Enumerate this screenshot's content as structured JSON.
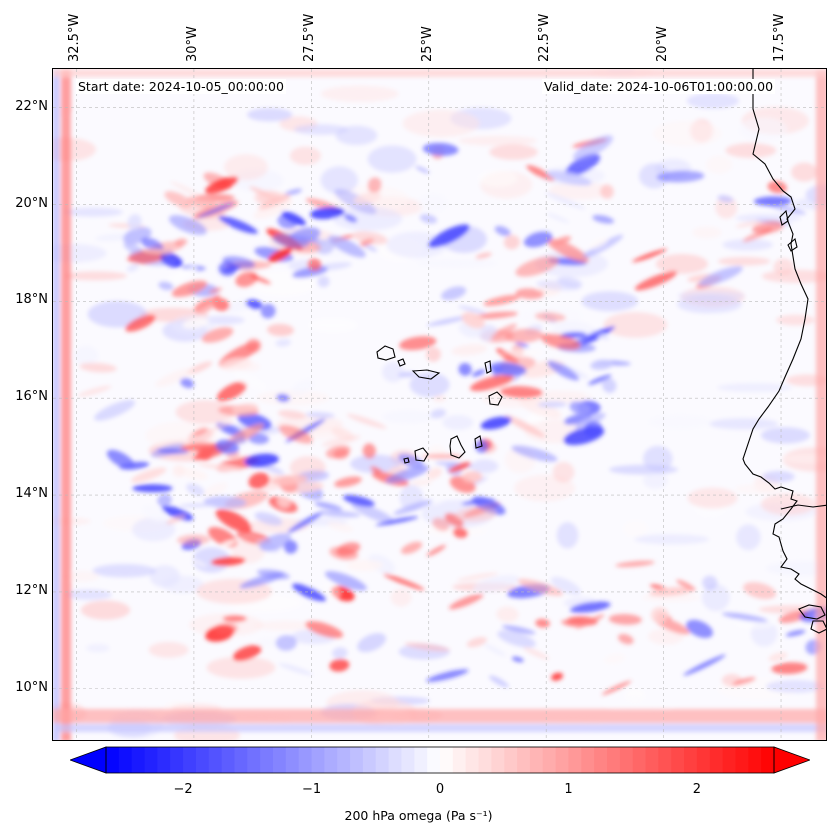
{
  "header": {
    "start_date": "Start date: 2024-10-05_00:00:00",
    "valid_date": "Valid_date: 2024-10-06T01:00:00.00"
  },
  "map": {
    "projection": "lat-lon",
    "lon_range_deg": [
      -33,
      -16.5
    ],
    "lat_range_deg": [
      8.9,
      22.8
    ],
    "lon_ticks": [
      {
        "value": -32.5,
        "label": "32.5°W"
      },
      {
        "value": -30.0,
        "label": "30°W"
      },
      {
        "value": -27.5,
        "label": "27.5°W"
      },
      {
        "value": -25.0,
        "label": "25°W"
      },
      {
        "value": -22.5,
        "label": "22.5°W"
      },
      {
        "value": -20.0,
        "label": "20°W"
      },
      {
        "value": -17.5,
        "label": "17.5°W"
      }
    ],
    "lat_ticks": [
      {
        "value": 22,
        "label": "22°N"
      },
      {
        "value": 20,
        "label": "20°N"
      },
      {
        "value": 18,
        "label": "18°N"
      },
      {
        "value": 16,
        "label": "16°N"
      },
      {
        "value": 14,
        "label": "14°N"
      },
      {
        "value": 12,
        "label": "12°N"
      },
      {
        "value": 10,
        "label": "10°N"
      }
    ],
    "gridlines": true,
    "features": [
      "Cape Verde islands",
      "West African coastline (Senegal, Gambia, Guinea-Bissau)"
    ]
  },
  "colorbar": {
    "label": "200 hPa omega (Pa s⁻¹)",
    "min": -2.6,
    "max": 2.6,
    "extend": "both",
    "colormap": "bwr",
    "ticks": [
      {
        "value": -2,
        "label": "−2"
      },
      {
        "value": -1,
        "label": "−1"
      },
      {
        "value": 0,
        "label": "0"
      },
      {
        "value": 1,
        "label": "1"
      },
      {
        "value": 2,
        "label": "2"
      }
    ]
  },
  "colors": {
    "negative": "#0000ff",
    "zero": "#ffffff",
    "positive": "#ff0000"
  }
}
